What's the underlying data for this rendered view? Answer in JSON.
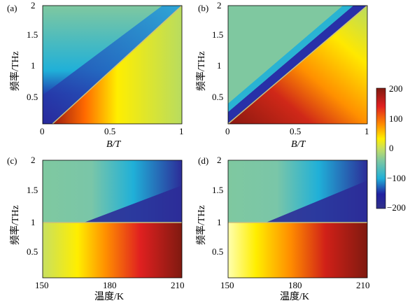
{
  "chart_data": [
    {
      "type": "heatmap",
      "panel_label": "(a)",
      "xlabel": "B/T",
      "ylabel": "频率/THz",
      "xlim": [
        0,
        1
      ],
      "ylim": [
        0.05,
        2
      ],
      "xticks": [
        "0",
        "0.5",
        "1"
      ],
      "yticks": [
        "0.5",
        "1",
        "1.5",
        "2"
      ],
      "boundary_line": {
        "x": [
          0.07,
          1.0
        ],
        "y": [
          0.05,
          2.0
        ]
      },
      "regions": [
        {
          "side": "above boundary",
          "approx_value": -200,
          "note": "negative band just above boundary, fading to ~-20 toward upper-left"
        },
        {
          "side": "below boundary",
          "approx_value": 200,
          "note": "strong positive near boundary at low B, fading to ~30 at high B"
        }
      ]
    },
    {
      "type": "heatmap",
      "panel_label": "(b)",
      "xlabel": "B/T",
      "ylabel": "频率/THz",
      "xlim": [
        0,
        1
      ],
      "ylim": [
        0.05,
        2
      ],
      "xticks": [
        "0",
        "0.5",
        "1"
      ],
      "yticks": [
        "0.5",
        "1",
        "1.5",
        "2"
      ],
      "boundary_line": {
        "x": [
          0.0,
          1.0
        ],
        "y": [
          0.05,
          2.0
        ]
      },
      "regions": [
        {
          "side": "above boundary",
          "approx_value": -200,
          "note": "narrow negative band along boundary"
        },
        {
          "side": "below boundary",
          "approx_value": 200,
          "note": "dark red at low frequency, fading to ~20 at high B"
        }
      ]
    },
    {
      "type": "heatmap",
      "panel_label": "(c)",
      "xlabel": "温度/K",
      "ylabel": "频率/THz",
      "xlim": [
        150,
        210
      ],
      "ylim": [
        0.05,
        2
      ],
      "xticks": [
        "150",
        "180",
        "210"
      ],
      "yticks": [
        "0.5",
        "1",
        "1.5",
        "2"
      ],
      "boundary_line": {
        "x": [
          150,
          210
        ],
        "y": [
          1.0,
          1.0
        ]
      },
      "regions": [
        {
          "side": "above 1 THz",
          "approx_value": -200,
          "note": "negative region growing with temperature"
        },
        {
          "side": "below 1 THz",
          "approx_value": 200,
          "note": "positive region growing with temperature"
        }
      ]
    },
    {
      "type": "heatmap",
      "panel_label": "(d)",
      "xlabel": "温度/K",
      "ylabel": "频率/THz",
      "xlim": [
        150,
        210
      ],
      "ylim": [
        0.05,
        2
      ],
      "xticks": [
        "150",
        "180",
        "210"
      ],
      "yticks": [
        "0.5",
        "1",
        "1.5",
        "2"
      ],
      "boundary_line": {
        "x": [
          150,
          210
        ],
        "y": [
          1.0,
          1.0
        ]
      },
      "regions": [
        {
          "side": "above 1 THz",
          "approx_value": -200,
          "note": "negative region growing with temperature"
        },
        {
          "side": "below 1 THz",
          "approx_value": 200,
          "note": "positive region growing with temperature"
        }
      ]
    }
  ],
  "colorbar": {
    "ticks": [
      "200",
      "100",
      "0",
      "−100",
      "−200"
    ],
    "range": [
      -200,
      200
    ],
    "colors": [
      "#7f1a10",
      "#e02020",
      "#ff8c00",
      "#ffee00",
      "#c8e060",
      "#7fc8a0",
      "#20b0d8",
      "#2020a0",
      "#303088"
    ]
  }
}
